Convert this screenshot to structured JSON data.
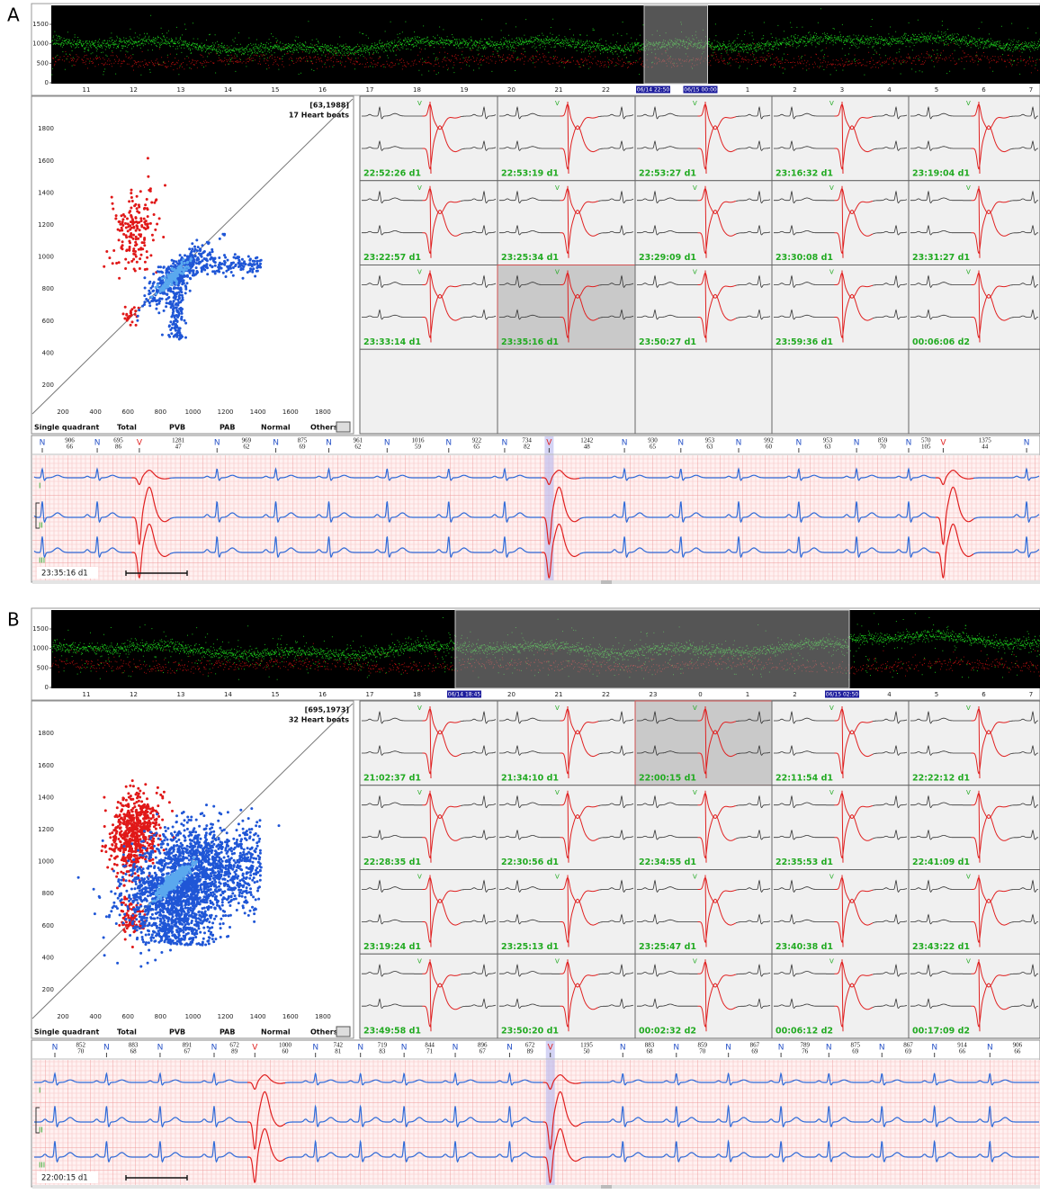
{
  "panels": [
    {
      "label": "A",
      "trend": {
        "yticks": [
          0,
          500,
          1000,
          1500
        ],
        "xticks": [
          "11",
          "12",
          "13",
          "14",
          "15",
          "16",
          "17",
          "18",
          "19",
          "20",
          "21",
          "22",
          "06/14 22:50",
          "06/15 00:00",
          "1",
          "2",
          "3",
          "4",
          "5",
          "6",
          "7"
        ]
      },
      "scatter": {
        "coords": "[63,1988]",
        "beats": "17 Heart beats",
        "yticks": [
          1800,
          1600,
          1400,
          1200,
          1000,
          800,
          600,
          400,
          200
        ],
        "xticks": [
          200,
          400,
          600,
          800,
          1000,
          1200,
          1400,
          1600,
          1800
        ]
      },
      "buttons": [
        "Single quadrant",
        "Total",
        "PVB",
        "PAB",
        "Normal",
        "Others"
      ],
      "thumb_marker": "V",
      "thumbnails": [
        "22:52:26 d1",
        "22:53:19 d1",
        "22:53:27 d1",
        "23:16:32 d1",
        "23:19:04 d1",
        "23:22:57 d1",
        "23:25:34 d1",
        "23:29:09 d1",
        "23:30:08 d1",
        "23:31:27 d1",
        "23:33:14 d1",
        "23:35:16 d1",
        "23:50:27 d1",
        "23:59:36 d1",
        "00:06:06 d2"
      ],
      "strip": {
        "time": "23:35:16 d1",
        "leads": [
          "I",
          "II",
          "III"
        ],
        "beats": [
          {
            "type": "N",
            "rr": 906,
            "hr": 66
          },
          {
            "type": "N",
            "rr": 695,
            "hr": 86
          },
          {
            "type": "V",
            "rr": 1281,
            "hr": 47
          },
          {
            "type": "N",
            "rr": 969,
            "hr": 62
          },
          {
            "type": "N",
            "rr": 875,
            "hr": 69
          },
          {
            "type": "N",
            "rr": 961,
            "hr": 62
          },
          {
            "type": "N",
            "rr": 1016,
            "hr": 59
          },
          {
            "type": "N",
            "rr": 922,
            "hr": 65
          },
          {
            "type": "N",
            "rr": 734,
            "hr": 82
          },
          {
            "type": "V",
            "rr": 1242,
            "hr": 48
          },
          {
            "type": "N",
            "rr": 930,
            "hr": 65
          },
          {
            "type": "N",
            "rr": 953,
            "hr": 63
          },
          {
            "type": "N",
            "rr": 992,
            "hr": 60
          },
          {
            "type": "N",
            "rr": 953,
            "hr": 63
          },
          {
            "type": "N",
            "rr": 859,
            "hr": 70
          },
          {
            "type": "N",
            "rr": 570,
            "hr": 105
          },
          {
            "type": "V",
            "rr": 1375,
            "hr": 44
          },
          {
            "type": "N"
          }
        ]
      }
    },
    {
      "label": "B",
      "trend": {
        "yticks": [
          0,
          500,
          1000,
          1500
        ],
        "xticks": [
          "11",
          "12",
          "13",
          "14",
          "15",
          "16",
          "17",
          "18",
          "06/14 18:45",
          "20",
          "21",
          "22",
          "23",
          "0",
          "1",
          "2",
          "06/15 02:50",
          "4",
          "5",
          "6",
          "7"
        ]
      },
      "scatter": {
        "coords": "[695,1973]",
        "beats": "32 Heart beats",
        "yticks": [
          1800,
          1600,
          1400,
          1200,
          1000,
          800,
          600,
          400,
          200
        ],
        "xticks": [
          200,
          400,
          600,
          800,
          1000,
          1200,
          1400,
          1600,
          1800
        ]
      },
      "buttons": [
        "Single quadrant",
        "Total",
        "PVB",
        "PAB",
        "Normal",
        "Others"
      ],
      "thumb_marker": "V",
      "thumbnails": [
        "21:02:37 d1",
        "21:34:10 d1",
        "22:00:15 d1",
        "22:11:54 d1",
        "22:22:12 d1",
        "22:28:35 d1",
        "22:30:56 d1",
        "22:34:55 d1",
        "22:35:53 d1",
        "22:41:09 d1",
        "23:19:24 d1",
        "23:25:13 d1",
        "23:25:47 d1",
        "23:40:38 d1",
        "23:43:22 d1",
        "23:49:58 d1",
        "23:50:20 d1",
        "00:02:32 d2",
        "00:06:12 d2",
        "00:17:09 d2"
      ],
      "strip": {
        "time": "22:00:15 d1",
        "leads": [
          "I",
          "II",
          "III"
        ],
        "beats": [
          {
            "type": "N",
            "rr": 852,
            "hr": 70
          },
          {
            "type": "N",
            "rr": 883,
            "hr": 68
          },
          {
            "type": "N",
            "rr": 891,
            "hr": 67
          },
          {
            "type": "N",
            "rr": 672,
            "hr": 89
          },
          {
            "type": "V",
            "rr": 1000,
            "hr": 60
          },
          {
            "type": "N",
            "rr": 742,
            "hr": 81
          },
          {
            "type": "N",
            "rr": 719,
            "hr": 83
          },
          {
            "type": "N",
            "rr": 844,
            "hr": 71
          },
          {
            "type": "N",
            "rr": 896,
            "hr": 67
          },
          {
            "type": "N",
            "rr": 672,
            "hr": 89
          },
          {
            "type": "V",
            "rr": 1195,
            "hr": 50
          },
          {
            "type": "N",
            "rr": 883,
            "hr": 68
          },
          {
            "type": "N",
            "rr": 859,
            "hr": 70
          },
          {
            "type": "N",
            "rr": 867,
            "hr": 69
          },
          {
            "type": "N",
            "rr": 789,
            "hr": 76
          },
          {
            "type": "N",
            "rr": 875,
            "hr": 69
          },
          {
            "type": "N",
            "rr": 867,
            "hr": 69
          },
          {
            "type": "N",
            "rr": 914,
            "hr": 66
          },
          {
            "type": "N",
            "rr": 906,
            "hr": 66
          }
        ]
      }
    }
  ]
}
